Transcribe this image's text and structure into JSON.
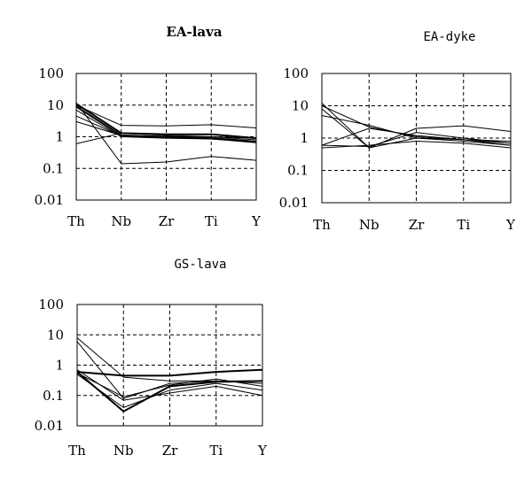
{
  "chart_data": [
    {
      "type": "line",
      "title": "EA-lava",
      "title_style": "bold-serif",
      "yscale": "log",
      "ylim": [
        0.01,
        100
      ],
      "yticks": [
        "100",
        "10",
        "1",
        "0.1",
        "0.01"
      ],
      "categories": [
        "Th",
        "Nb",
        "Zr",
        "Ti",
        "Y"
      ],
      "grid": true,
      "series": [
        {
          "values": [
            10,
            2.3,
            2.2,
            2.4,
            1.9
          ],
          "width": 1
        },
        {
          "values": [
            11,
            1.3,
            1.2,
            1.2,
            0.9
          ],
          "width": 2
        },
        {
          "values": [
            9,
            1.1,
            1.0,
            0.9,
            0.7
          ],
          "width": 2
        },
        {
          "values": [
            7,
            1.0,
            0.9,
            0.85,
            0.65
          ],
          "width": 1
        },
        {
          "values": [
            4.5,
            1.05,
            0.95,
            0.85,
            0.7
          ],
          "width": 1
        },
        {
          "values": [
            3,
            1.1,
            1.0,
            1.0,
            0.8
          ],
          "width": 1
        },
        {
          "values": [
            0.6,
            1.3,
            1.1,
            1.0,
            0.9
          ],
          "width": 1
        },
        {
          "values": [
            12,
            0.14,
            0.16,
            0.24,
            0.18
          ],
          "width": 1
        }
      ]
    },
    {
      "type": "line",
      "title": "EA-dyke",
      "title_style": "mono",
      "yscale": "log",
      "ylim": [
        0.01,
        100
      ],
      "yticks": [
        "100",
        "10",
        "1",
        "0.1",
        "0.01"
      ],
      "categories": [
        "Th",
        "Nb",
        "Zr",
        "Ti",
        "Y"
      ],
      "grid": true,
      "series": [
        {
          "values": [
            12,
            0.5,
            2.0,
            2.4,
            1.6
          ],
          "width": 1
        },
        {
          "values": [
            5,
            2.5,
            1.0,
            0.9,
            0.7
          ],
          "width": 1
        },
        {
          "values": [
            10,
            2.2,
            1.1,
            0.9,
            0.6
          ],
          "width": 1
        },
        {
          "values": [
            0.6,
            2.0,
            1.2,
            0.9,
            0.8
          ],
          "width": 1
        },
        {
          "values": [
            0.5,
            0.6,
            0.8,
            0.7,
            0.5
          ],
          "width": 1
        },
        {
          "values": [
            0.6,
            0.55,
            1.5,
            1.0,
            0.7
          ],
          "width": 1
        },
        {
          "values": [
            8,
            0.5,
            1.0,
            0.8,
            0.6
          ],
          "width": 1
        }
      ]
    },
    {
      "type": "line",
      "title": "GS-lava",
      "title_style": "mono",
      "yscale": "log",
      "ylim": [
        0.01,
        100
      ],
      "yticks": [
        "100",
        "10",
        "1",
        "0.1",
        "0.01"
      ],
      "categories": [
        "Th",
        "Nb",
        "Zr",
        "Ti",
        "Y"
      ],
      "grid": true,
      "series": [
        {
          "values": [
            0.6,
            0.45,
            0.45,
            0.6,
            0.7
          ],
          "width": 2
        },
        {
          "values": [
            8,
            0.4,
            0.3,
            0.3,
            0.3
          ],
          "width": 1
        },
        {
          "values": [
            6,
            0.08,
            0.25,
            0.3,
            0.25
          ],
          "width": 1
        },
        {
          "values": [
            0.6,
            0.03,
            0.2,
            0.28,
            0.3
          ],
          "width": 2
        },
        {
          "values": [
            0.5,
            0.04,
            0.15,
            0.25,
            0.15
          ],
          "width": 1
        },
        {
          "values": [
            0.7,
            0.07,
            0.12,
            0.2,
            0.1
          ],
          "width": 1
        },
        {
          "values": [
            0.55,
            0.09,
            0.22,
            0.35,
            0.2
          ],
          "width": 1
        }
      ]
    }
  ]
}
